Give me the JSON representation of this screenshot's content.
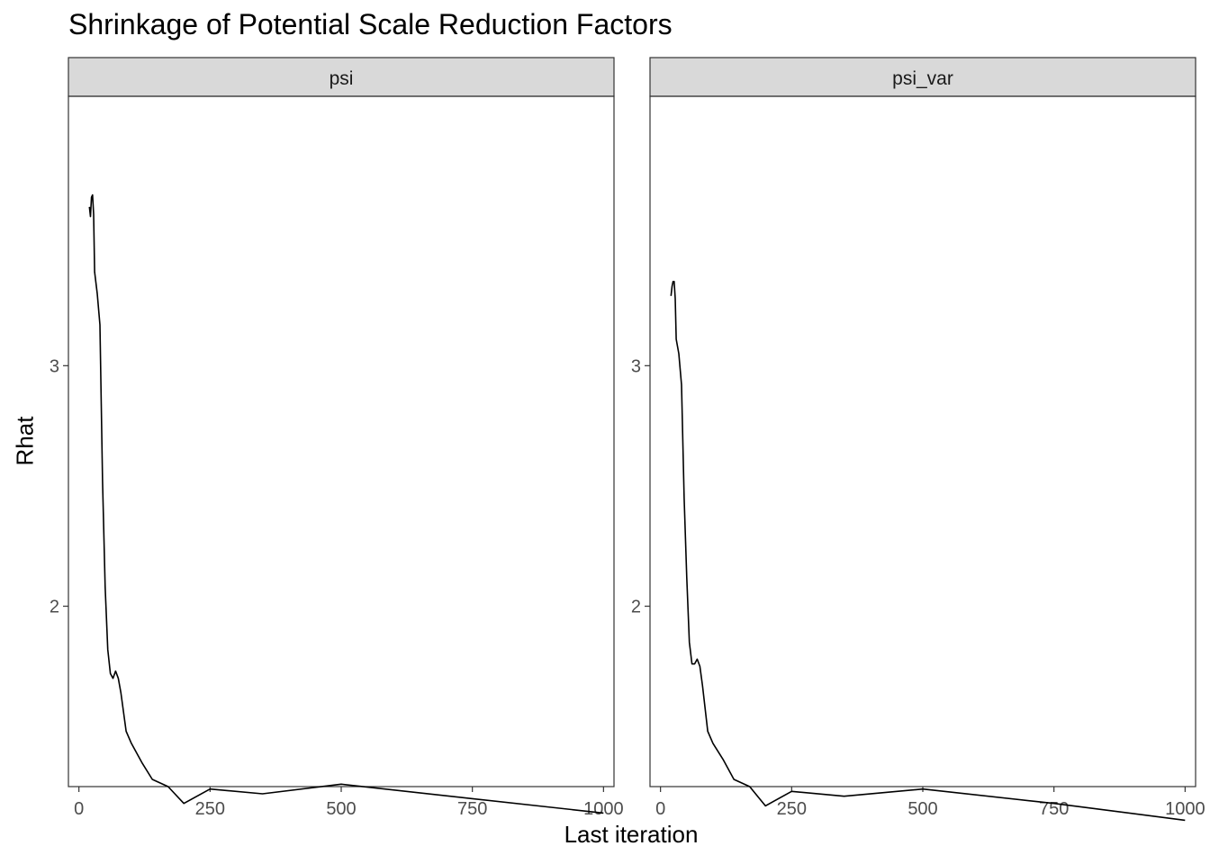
{
  "chart_data": {
    "type": "line",
    "title": "Shrinkage of Potential Scale Reduction Factors",
    "xlabel": "Last iteration",
    "ylabel": "Rhat",
    "xlim": [
      -20,
      1020
    ],
    "ylim": [
      1.25,
      4.12
    ],
    "x_ticks": [
      0,
      250,
      500,
      750,
      1000
    ],
    "y_ticks": [
      2,
      3
    ],
    "grid": false,
    "line_color": "#000000",
    "strip_fill": "#d9d9d9",
    "panels": [
      {
        "name": "psi",
        "x": [
          20,
          22,
          24,
          26,
          28,
          30,
          35,
          40,
          45,
          50,
          55,
          60,
          65,
          70,
          75,
          80,
          90,
          100,
          120,
          140,
          170,
          200,
          250,
          350,
          500,
          750,
          1000
        ],
        "y": [
          3.66,
          3.62,
          3.7,
          3.71,
          3.63,
          3.39,
          3.3,
          3.17,
          2.52,
          2.08,
          1.82,
          1.72,
          1.7,
          1.73,
          1.7,
          1.64,
          1.48,
          1.43,
          1.35,
          1.28,
          1.25,
          1.18,
          1.24,
          1.22,
          1.26,
          1.2,
          1.14
        ]
      },
      {
        "name": "psi_var",
        "x": [
          20,
          22,
          24,
          26,
          28,
          30,
          35,
          40,
          45,
          50,
          55,
          60,
          65,
          70,
          75,
          80,
          90,
          100,
          120,
          140,
          170,
          200,
          250,
          350,
          500,
          750,
          1000
        ],
        "y": [
          3.29,
          3.33,
          3.35,
          3.35,
          3.28,
          3.11,
          3.05,
          2.92,
          2.45,
          2.12,
          1.85,
          1.76,
          1.76,
          1.78,
          1.75,
          1.67,
          1.48,
          1.43,
          1.36,
          1.28,
          1.25,
          1.17,
          1.23,
          1.21,
          1.24,
          1.18,
          1.11
        ]
      }
    ]
  }
}
